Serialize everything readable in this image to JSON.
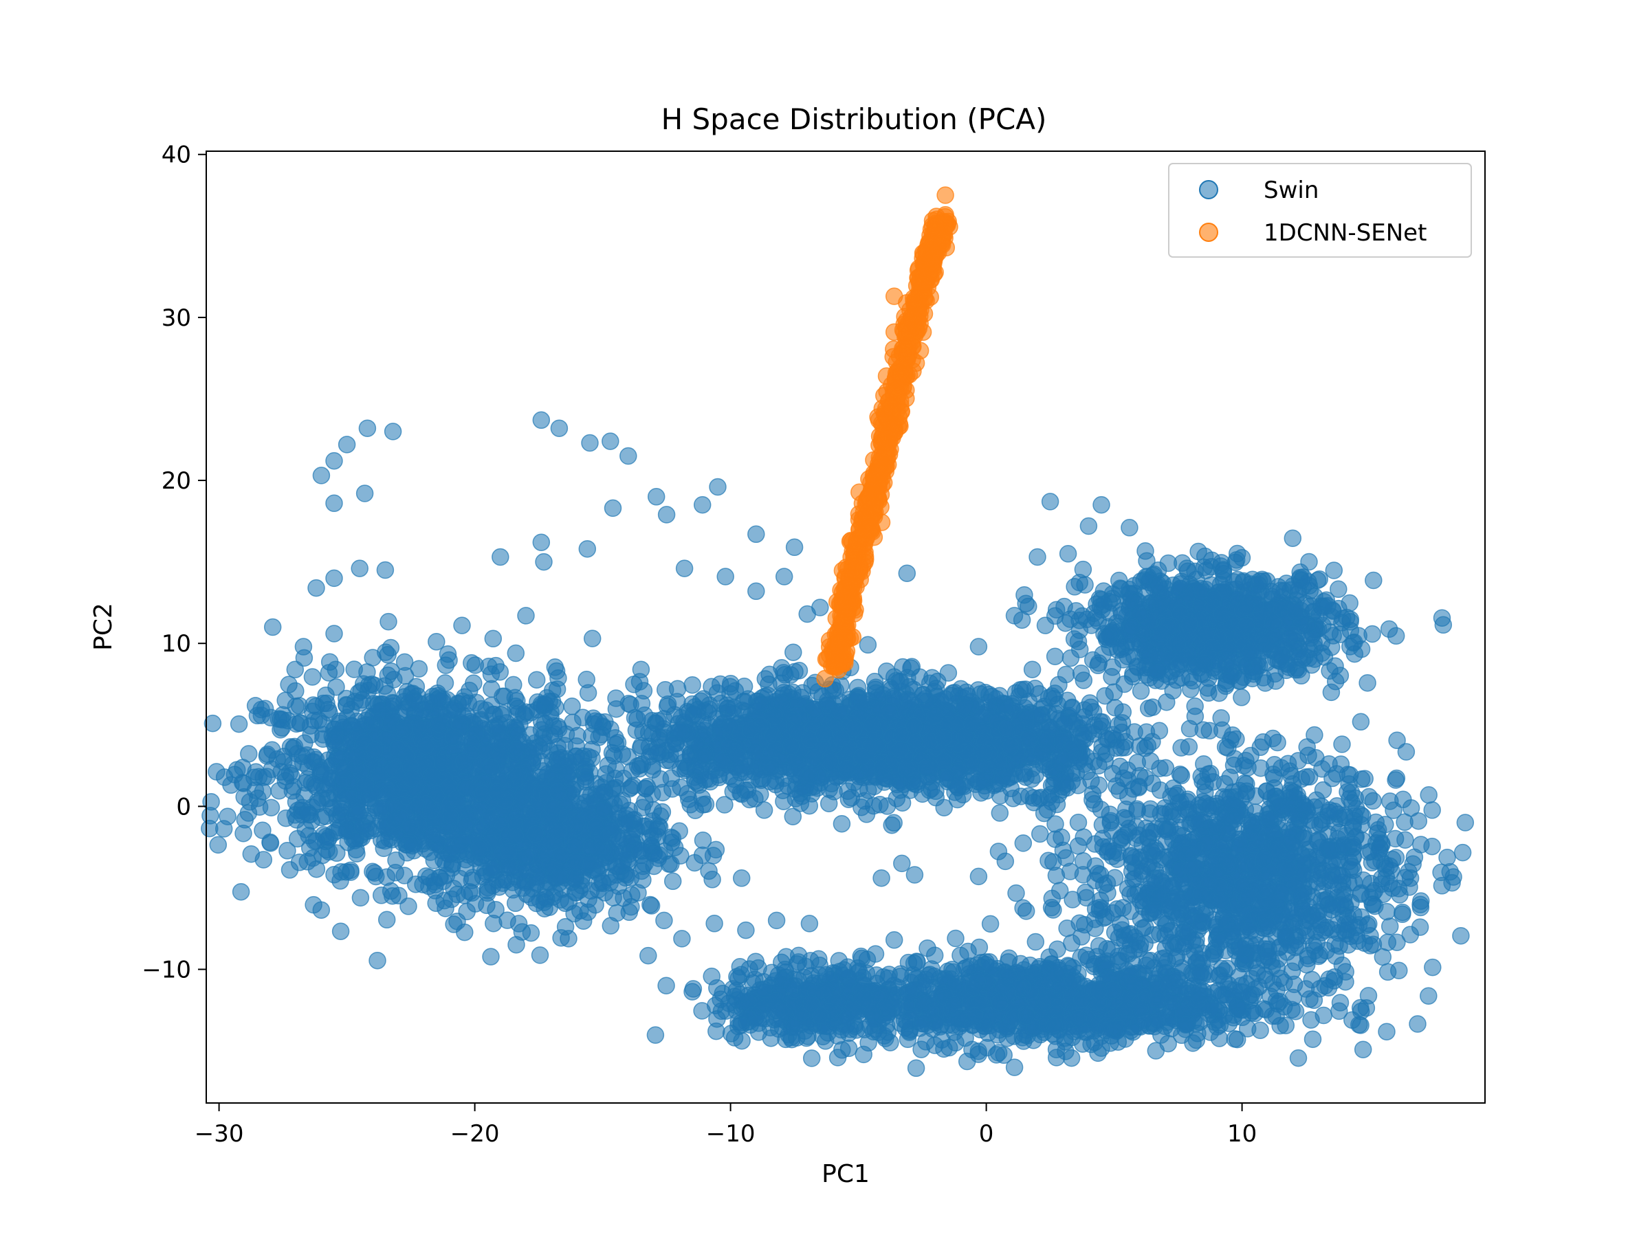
{
  "chart_data": {
    "type": "scatter",
    "title": "H Space Distribution (PCA)",
    "xlabel": "PC1",
    "ylabel": "PC2",
    "xlim": [
      -30.5,
      19.5
    ],
    "ylim": [
      -18.2,
      40.2
    ],
    "xticks": [
      -30,
      -20,
      -10,
      0,
      10
    ],
    "yticks": [
      -10,
      0,
      10,
      20,
      30,
      40
    ],
    "grid": false,
    "legend_position": "top-right",
    "series": [
      {
        "name": "Swin",
        "color": "#1f77b4",
        "alpha": 0.55,
        "clusters": [
          {
            "center": [
              -22,
              2
            ],
            "spread": [
              4.2,
              3.8
            ],
            "count": 1500
          },
          {
            "center": [
              -17,
              -2
            ],
            "spread": [
              3.0,
              3.2
            ],
            "count": 700
          },
          {
            "center": [
              -6,
              4
            ],
            "spread": [
              5.0,
              2.2
            ],
            "count": 1400
          },
          {
            "center": [
              0,
              4
            ],
            "spread": [
              3.5,
              2.0
            ],
            "count": 600
          },
          {
            "center": [
              9,
              11
            ],
            "spread": [
              3.3,
              2.2
            ],
            "count": 1000
          },
          {
            "center": [
              10,
              -4
            ],
            "spread": [
              4.2,
              4.5
            ],
            "count": 1300
          },
          {
            "center": [
              2,
              -12
            ],
            "spread": [
              6.0,
              1.8
            ],
            "count": 1100
          },
          {
            "center": [
              -7,
              -12
            ],
            "spread": [
              2.5,
              1.5
            ],
            "count": 300
          }
        ],
        "outliers": [
          [
            -25.5,
            21.2
          ],
          [
            -25,
            22.2
          ],
          [
            -24.2,
            23.2
          ],
          [
            -24.3,
            19.2
          ],
          [
            -26,
            20.3
          ],
          [
            -23.2,
            23.0
          ],
          [
            -25.5,
            18.6
          ],
          [
            -24.5,
            14.6
          ],
          [
            -23.5,
            14.5
          ],
          [
            -17.4,
            23.7
          ],
          [
            -16.7,
            23.2
          ],
          [
            -15.5,
            22.3
          ],
          [
            -14.7,
            22.4
          ],
          [
            -14.0,
            21.5
          ],
          [
            -14.6,
            18.3
          ],
          [
            -12.9,
            19.0
          ],
          [
            -12.5,
            17.9
          ],
          [
            -11.1,
            18.5
          ],
          [
            -10.5,
            19.6
          ],
          [
            -17.4,
            16.2
          ],
          [
            -15.6,
            15.8
          ],
          [
            -19.0,
            15.3
          ],
          [
            -17.3,
            15.0
          ],
          [
            -9.0,
            16.7
          ],
          [
            -26.2,
            13.4
          ],
          [
            -25.5,
            14.0
          ],
          [
            -27.9,
            11.0
          ],
          [
            -25.5,
            10.6
          ],
          [
            -26.7,
            9.8
          ],
          [
            -23.4,
            9.3
          ],
          [
            -21.5,
            10.1
          ],
          [
            -20.5,
            11.1
          ],
          [
            -18.0,
            11.7
          ],
          [
            -16.8,
            8.3
          ],
          [
            -15.4,
            10.3
          ],
          [
            -11.8,
            14.6
          ],
          [
            -10.2,
            14.1
          ],
          [
            -9.0,
            13.2
          ],
          [
            -7.9,
            14.1
          ],
          [
            -7.0,
            11.8
          ],
          [
            -6.5,
            12.2
          ],
          [
            -7.5,
            15.9
          ],
          [
            -3.1,
            14.3
          ],
          [
            -5.0,
            14.9
          ],
          [
            1.1,
            11.7
          ],
          [
            2.0,
            15.3
          ],
          [
            3.2,
            15.5
          ],
          [
            2.5,
            18.7
          ],
          [
            4.5,
            18.5
          ],
          [
            5.6,
            17.1
          ],
          [
            4.0,
            17.2
          ],
          [
            4.6,
            12.4
          ],
          [
            3.3,
            9.1
          ],
          [
            4.4,
            8.8
          ],
          [
            5.4,
            7.5
          ],
          [
            7.3,
            7.1
          ],
          [
            8.5,
            2.6
          ],
          [
            6.0,
            3.7
          ],
          [
            4.4,
            1.3
          ],
          [
            12.2,
            2.8
          ],
          [
            13.4,
            2.6
          ],
          [
            14.8,
            1.7
          ],
          [
            17.3,
            0.7
          ],
          [
            16.9,
            -0.9
          ],
          [
            15.4,
            -2.6
          ],
          [
            15.1,
            -6.0
          ],
          [
            13.4,
            -10.6
          ],
          [
            12.5,
            -11.2
          ],
          [
            14.2,
            -7.2
          ],
          [
            -24.7,
            -2.1
          ],
          [
            -26.5,
            -0.5
          ],
          [
            -28.2,
            6.0
          ],
          [
            -27.6,
            4.7
          ],
          [
            -12.6,
            -7.0
          ],
          [
            -9.4,
            -7.6
          ],
          [
            -8.2,
            -7.0
          ],
          [
            -4.9,
            -9.2
          ],
          [
            -3.6,
            -8.2
          ],
          [
            -2.3,
            -8.7
          ],
          [
            -1.2,
            -8.1
          ],
          [
            -4.1,
            -4.4
          ],
          [
            -2.8,
            -4.2
          ],
          [
            -0.3,
            -4.3
          ],
          [
            -9.9,
            0.9
          ],
          [
            -13.5,
            8.4
          ],
          [
            -10.4,
            7.5
          ],
          [
            -8.0,
            8.5
          ],
          [
            -0.3,
            9.8
          ],
          [
            1.8,
            8.4
          ],
          [
            -1.2,
            -14.5
          ],
          [
            -7.6,
            -11.0
          ],
          [
            -8.9,
            -13.3
          ],
          [
            4.1,
            -14.6
          ],
          [
            7.8,
            -13.4
          ],
          [
            10.5,
            -12.7
          ],
          [
            -3.3,
            -3.5
          ]
        ]
      },
      {
        "name": "1DCNN-SENet",
        "color": "#ff7f0e",
        "alpha": 0.6,
        "trend": [
          [
            -5.9,
            8.5
          ],
          [
            -5.3,
            13.5
          ],
          [
            -4.5,
            18.5
          ],
          [
            -3.7,
            24.0
          ],
          [
            -3.0,
            29.0
          ],
          [
            -2.3,
            33.0
          ],
          [
            -1.7,
            36.0
          ]
        ],
        "count": 700,
        "outliers": [
          [
            -1.6,
            37.5
          ],
          [
            -3.6,
            31.3
          ],
          [
            -3.6,
            29.1
          ],
          [
            -3.9,
            26.4
          ],
          [
            -4.0,
            25.2
          ],
          [
            -4.2,
            23.7
          ],
          [
            -4.6,
            19.0
          ],
          [
            -4.4,
            20.1
          ],
          [
            -5.2,
            12.8
          ],
          [
            -5.5,
            9.3
          ]
        ]
      }
    ]
  }
}
